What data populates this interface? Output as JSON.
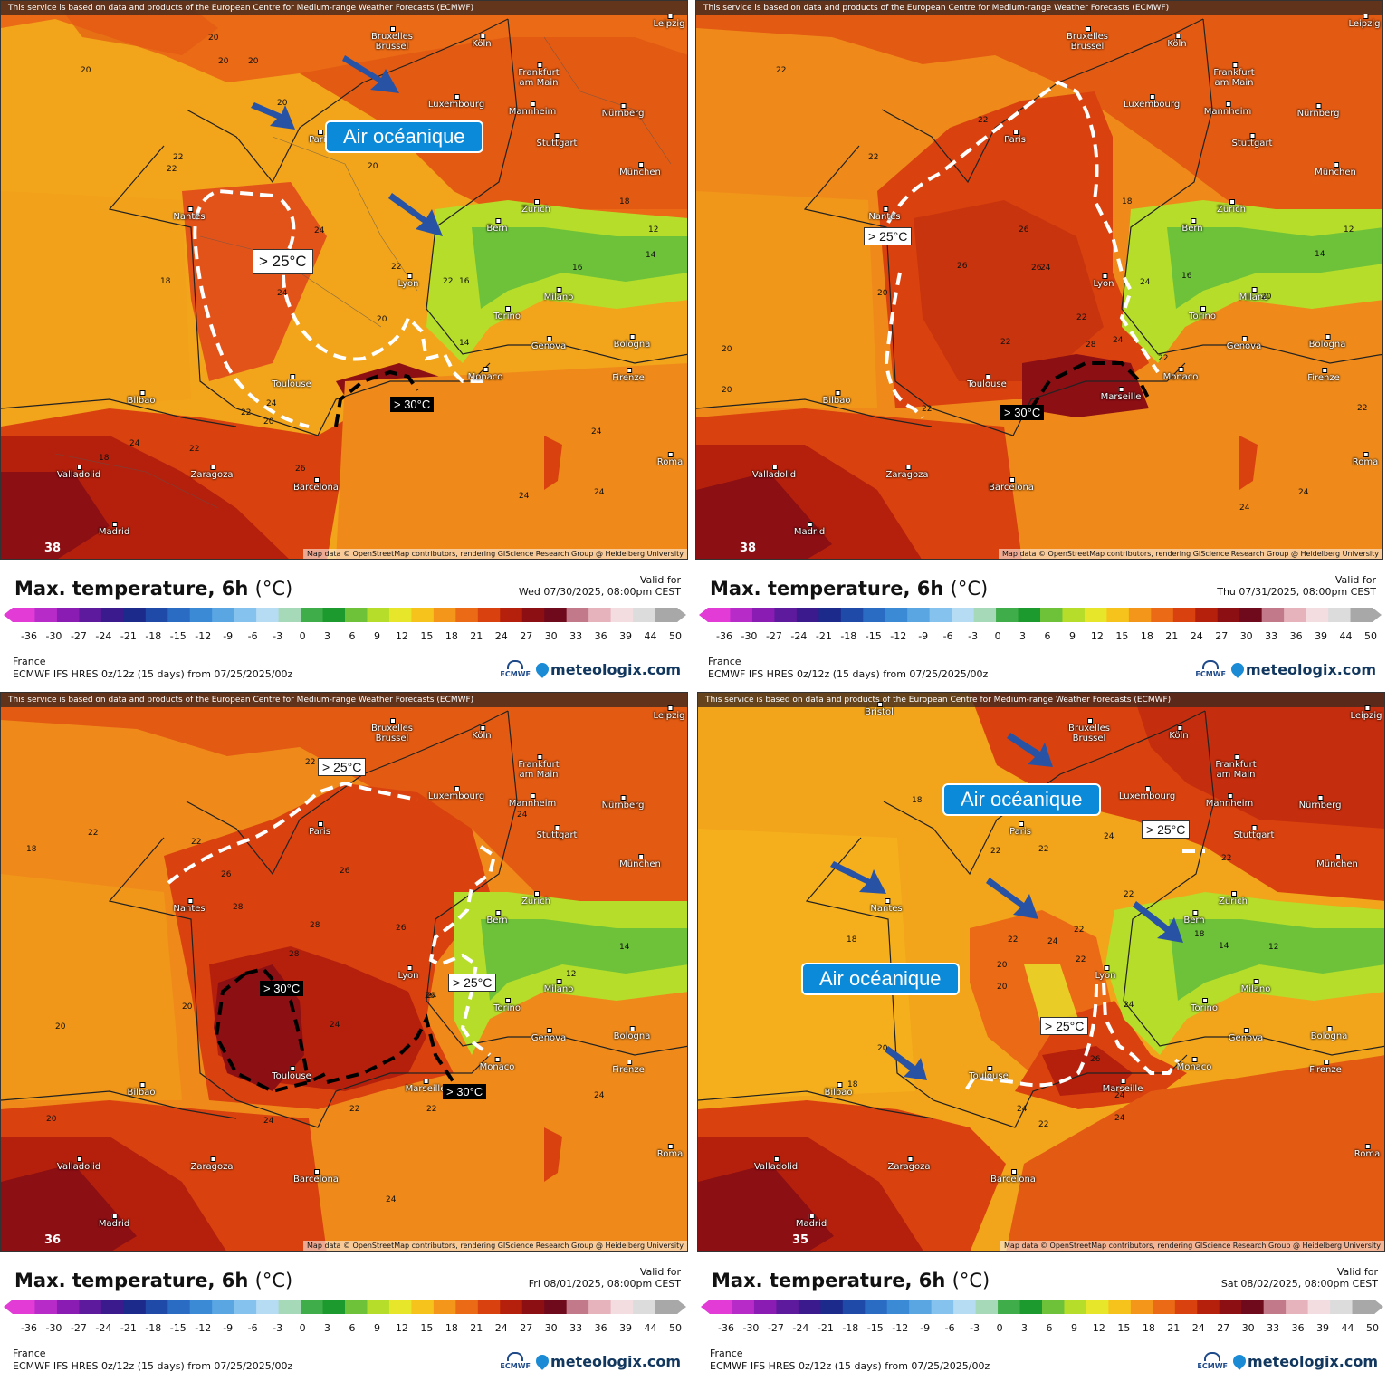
{
  "banner": "This service is based on data and products of the European Centre for Medium-range Weather Forecasts (ECMWF)",
  "attribution": "Map data © OpenStreetMap contributors, rendering GIScience Research Group @ Heidelberg University",
  "chart_title": "Max. temperature, 6h",
  "chart_unit": "(°C)",
  "valid_for_label": "Valid for",
  "region": "France",
  "model_line": "ECMWF IFS HRES 0z/12z (15 days) from 07/25/2025/00z",
  "ecmwf_label": "ECMWF",
  "brand": "meteologix.com",
  "legend_ticks": [
    "-36",
    "-30",
    "-27",
    "-24",
    "-21",
    "-18",
    "-15",
    "-12",
    "-9",
    "-6",
    "-3",
    "0",
    "3",
    "6",
    "9",
    "12",
    "15",
    "18",
    "21",
    "24",
    "27",
    "30",
    "33",
    "36",
    "39",
    "44",
    "50"
  ],
  "legend_colors": [
    "#e23bd6",
    "#b72bc9",
    "#8a1cb3",
    "#5e1a9c",
    "#3b1a8d",
    "#1c2a8c",
    "#1f4aa8",
    "#2a6cc4",
    "#3b8ad6",
    "#5aa6e2",
    "#86c2ee",
    "#b6dcf4",
    "#a6d9b8",
    "#3fae4a",
    "#1d9a2e",
    "#6dc23a",
    "#b6dd2a",
    "#e8e62a",
    "#f6c21c",
    "#f3961a",
    "#ea6a16",
    "#d9420f",
    "#b5200c",
    "#8c0f14",
    "#6e0a1c",
    "#c27a8a",
    "#e6b3bd",
    "#f3dde0",
    "#dcdcdc",
    "#a8a8a8"
  ],
  "city_names": {
    "bruxelles": "Bruxelles\nBrussel",
    "koln": "Köln",
    "leipzig": "Leipzig",
    "frankfurt": "Frankfurt\nam Main",
    "luxembourg": "Luxembourg",
    "mannheim": "Mannheim",
    "nurnberg": "Nürnberg",
    "stuttgart": "Stuttgart",
    "munchen": "München",
    "paris": "Paris",
    "zurich": "Zürich",
    "bern": "Bern",
    "nantes": "Nantes",
    "lyon": "Lyon",
    "milano": "Milano",
    "torino": "Torino",
    "genova": "Genova",
    "bologna": "Bologna",
    "toulouse": "Toulouse",
    "marseille": "Marseille",
    "monaco": "Monaco",
    "firenze": "Firenze",
    "bilbao": "Bilbao",
    "valladolid": "Valladolid",
    "zaragoza": "Zaragoza",
    "barcelona": "Barcelona",
    "roma": "Roma",
    "madrid": "Madrid",
    "bristol": "Bristol"
  },
  "panels": [
    {
      "valid": "Wed 07/30/2025, 08:00pm CEST",
      "corner_number": "38",
      "labels": {
        "ocean1": "Air océanique",
        "w1": "> 25°C",
        "b1": "> 30°C"
      },
      "numbers": [
        "20",
        "22",
        "18",
        "22",
        "24",
        "20",
        "22",
        "24",
        "20",
        "22",
        "24",
        "22",
        "20",
        "16",
        "14",
        "12",
        "18",
        "14",
        "16",
        "24",
        "20",
        "20",
        "22",
        "24",
        "26",
        "24",
        "24",
        "20",
        "18",
        "20"
      ]
    },
    {
      "valid": "Thu 07/31/2025, 08:00pm CEST",
      "corner_number": "38",
      "labels": {
        "w1": "> 25°C",
        "b1": "> 30°C"
      },
      "numbers": [
        "22",
        "22",
        "20",
        "22",
        "20",
        "26",
        "26",
        "24",
        "22",
        "22",
        "20",
        "24",
        "18",
        "12",
        "14",
        "22",
        "26",
        "28",
        "24",
        "22",
        "16",
        "20",
        "22",
        "24",
        "24"
      ]
    },
    {
      "valid": "Fri 08/01/2025, 08:00pm CEST",
      "corner_number": "36",
      "labels": {
        "w1": "> 25°C",
        "w2": "> 25°C",
        "b1": "> 30°C",
        "b2": "> 30°C"
      },
      "numbers": [
        "22",
        "22",
        "18",
        "26",
        "28",
        "28",
        "26",
        "20",
        "20",
        "24",
        "26",
        "28",
        "22",
        "24",
        "24",
        "20",
        "22",
        "26",
        "24",
        "24",
        "14",
        "12",
        "22",
        "24"
      ]
    },
    {
      "valid": "Sat 08/02/2025, 08:00pm CEST",
      "corner_number": "35",
      "labels": {
        "ocean1": "Air océanique",
        "ocean2": "Air océanique",
        "w1": "> 25°C",
        "w2": "> 25°C"
      },
      "numbers": [
        "18",
        "18",
        "22",
        "22",
        "22",
        "24",
        "22",
        "20",
        "20",
        "24",
        "22",
        "18",
        "14",
        "12",
        "26",
        "24",
        "22",
        "24",
        "24",
        "20",
        "22",
        "18",
        "22",
        "24"
      ]
    }
  ]
}
